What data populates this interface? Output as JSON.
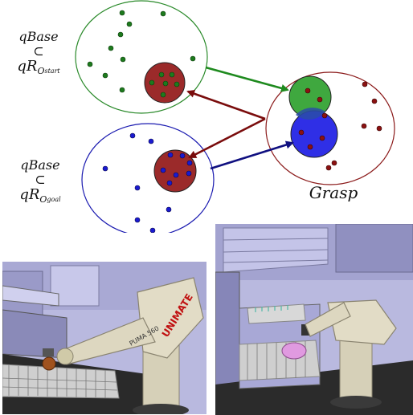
{
  "labels": {
    "start": {
      "top": "qBase",
      "symbol": "⊂",
      "main": "qR",
      "sub": "O",
      "subsub": "start"
    },
    "goal": {
      "top": "qBase",
      "symbol": "⊂",
      "main": "qR",
      "sub": "O",
      "subsub": "goal"
    },
    "grasp": "Grasp"
  },
  "robot_left": {
    "brand": "UNIMATE",
    "model": "PUMA 560"
  },
  "colors": {
    "start_set": "#2a8a2a",
    "goal_set": "#1a1ab0",
    "grasp_set": "#8b1a1a",
    "green_region": "#3fa83f",
    "blue_region": "#2f2fe6",
    "red_region": "#9b2a2a",
    "dot_green": "#1d7a1d",
    "dot_blue": "#1a1ad0",
    "dot_red": "#8b1111",
    "arrow_green": "#1e8a1e",
    "arrow_red": "#7a0c0c",
    "arrow_blue": "#101080"
  }
}
